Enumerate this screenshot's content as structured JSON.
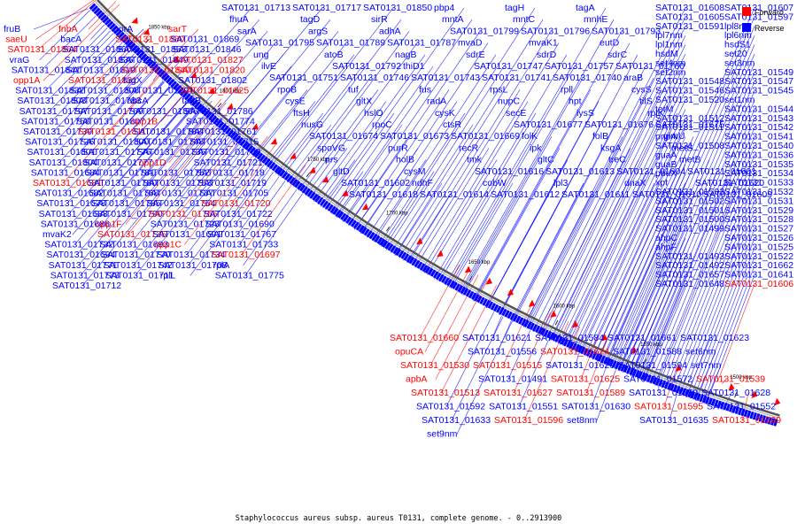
{
  "caption": "Staphylococcus aureus subsp. aureus T0131, complete genome. - 0..2913900",
  "legend": [
    {
      "label": "Forward",
      "color": "#ff0000"
    },
    {
      "label": "Reverse",
      "color": "#0000ff"
    }
  ],
  "colors": {
    "forward": "#ff0000",
    "reverse": "#0000ff",
    "backbone": "#808080"
  },
  "kbp_ticks": [
    "1850 kbp",
    "1800 kbp",
    "1750 kbp",
    "1700 kbp",
    "1650 kbp",
    "1600 kbp",
    "1550 kbp",
    "1500 kbp"
  ],
  "labels": [
    {
      "t": "fruB",
      "s": "r"
    },
    {
      "t": "fnbA",
      "s": "f"
    },
    {
      "t": "norA",
      "s": "r"
    },
    {
      "t": "sarT",
      "s": "f"
    },
    {
      "t": "saeU",
      "s": "f"
    },
    {
      "t": "bacA",
      "s": "r"
    },
    {
      "t": "SAT0131_01880",
      "s": "f"
    },
    {
      "t": "SAT0131_01869",
      "s": "r"
    },
    {
      "t": "SAT0131_01864",
      "s": "f"
    },
    {
      "t": "SAT0131_01860",
      "s": "r"
    },
    {
      "t": "SAT0131_01853",
      "s": "r"
    },
    {
      "t": "SAT0131_01846",
      "s": "r"
    },
    {
      "t": "vraG",
      "s": "r"
    },
    {
      "t": "SAT0131_01835",
      "s": "r"
    },
    {
      "t": "SAT0131_01849",
      "s": "r"
    },
    {
      "t": "SAT0131_01827",
      "s": "f"
    },
    {
      "t": "SAT0131_01841",
      "s": "r"
    },
    {
      "t": "SAT0131_01819",
      "s": "r"
    },
    {
      "t": "SAT0131_01840",
      "s": "f"
    },
    {
      "t": "SAT0131_01820",
      "s": "f"
    },
    {
      "t": "opp1A",
      "s": "f"
    },
    {
      "t": "SAT0131_01831",
      "s": "f"
    },
    {
      "t": "tagX",
      "s": "r"
    },
    {
      "t": "SAT0131_01802",
      "s": "r"
    },
    {
      "t": "SAT0131_01832",
      "s": "r"
    },
    {
      "t": "SAT0131_01808",
      "s": "r"
    },
    {
      "t": "SAT0131_01791",
      "s": "r"
    },
    {
      "t": "SAT0131_01825",
      "s": "f"
    },
    {
      "t": "SAT0131_01803",
      "s": "r"
    },
    {
      "t": "SAT0131_01783",
      "s": "r"
    },
    {
      "t": "abcA",
      "s": "r"
    },
    {
      "t": "tagB",
      "s": "r"
    },
    {
      "t": "SAT0131_01797",
      "s": "r"
    },
    {
      "t": "SAT0131_01769",
      "s": "r"
    },
    {
      "t": "SAT0131_01806",
      "s": "r"
    },
    {
      "t": "SAT0131_01786",
      "s": "r"
    },
    {
      "t": "SAT0131_01758",
      "s": "r"
    },
    {
      "t": "SAT0131_01807",
      "s": "r"
    },
    {
      "t": "opp1B",
      "s": "f"
    },
    {
      "t": "SAT0131_01774",
      "s": "r"
    },
    {
      "t": "SAT0131_01739",
      "s": "r"
    },
    {
      "t": "SAT0131_01811",
      "s": "f"
    },
    {
      "t": "SAT0131_01788",
      "s": "r"
    },
    {
      "t": "SAT0131_01761",
      "s": "r"
    },
    {
      "t": "SAT0131_01726",
      "s": "r"
    },
    {
      "t": "SAT0131_01800",
      "s": "r"
    },
    {
      "t": "SAT0131_01748",
      "s": "r"
    },
    {
      "t": "SAT0131_01715",
      "s": "r"
    },
    {
      "t": "SAT0131_01801",
      "s": "r"
    },
    {
      "t": "SAT0131_01776",
      "s": "r"
    },
    {
      "t": "SAT0131_01735",
      "s": "r"
    },
    {
      "t": "SAT0131_01702",
      "s": "r"
    },
    {
      "t": "SAT0131_01804",
      "s": "r"
    },
    {
      "t": "SAT0131_01777",
      "s": "r"
    },
    {
      "t": "opp1D",
      "s": "f"
    },
    {
      "t": "SAT0131_01721",
      "s": "r"
    },
    {
      "t": "SAT0131_01684",
      "s": "r"
    },
    {
      "t": "SAT0131_01781",
      "s": "r"
    },
    {
      "t": "SAT0131_01752",
      "s": "r"
    },
    {
      "t": "SAT0131_01718",
      "s": "r"
    },
    {
      "t": "SAT0131_01681",
      "s": "f"
    },
    {
      "t": "SAT0131_01780",
      "s": "r"
    },
    {
      "t": "SAT0131_01753",
      "s": "r"
    },
    {
      "t": "SAT0131_01719",
      "s": "r"
    },
    {
      "t": "SAT0131_01682",
      "s": "r"
    },
    {
      "t": "SAT0131_01768",
      "s": "r"
    },
    {
      "t": "SAT0131_01737",
      "s": "r"
    },
    {
      "t": "SAT0131_01705",
      "s": "r"
    },
    {
      "t": "SAT0131_01678",
      "s": "r"
    },
    {
      "t": "SAT0131_01785",
      "s": "r"
    },
    {
      "t": "SAT0131_01754",
      "s": "r"
    },
    {
      "t": "SAT0131_01720",
      "s": "f"
    },
    {
      "t": "SAT0131_01683",
      "s": "r"
    },
    {
      "t": "SAT0131_01790",
      "s": "r"
    },
    {
      "t": "SAT0131_01755",
      "s": "f"
    },
    {
      "t": "SAT0131_01722",
      "s": "r"
    },
    {
      "t": "SAT0131_01686",
      "s": "r"
    },
    {
      "t": "opp1F",
      "s": "f"
    },
    {
      "t": "SAT0131_01723",
      "s": "r"
    },
    {
      "t": "SAT0131_01690",
      "s": "r"
    },
    {
      "t": "mvaK2",
      "s": "r"
    },
    {
      "t": "SAT0131_01725",
      "s": "f"
    },
    {
      "t": "SAT0131_01691",
      "s": "r"
    },
    {
      "t": "SAT0131_01767",
      "s": "r"
    },
    {
      "t": "SAT0131_01732",
      "s": "r"
    },
    {
      "t": "SAT0131_01693",
      "s": "r"
    },
    {
      "t": "opp1C",
      "s": "f"
    },
    {
      "t": "SAT0131_01733",
      "s": "r"
    },
    {
      "t": "SAT0131_01694",
      "s": "r"
    },
    {
      "t": "SAT0131_01770",
      "s": "r"
    },
    {
      "t": "SAT0131_01734",
      "s": "r"
    },
    {
      "t": "SAT0131_01697",
      "s": "f"
    },
    {
      "t": "SAT0131_01771",
      "s": "r"
    },
    {
      "t": "SAT0131_01742",
      "s": "r"
    },
    {
      "t": "SAT0131_01708",
      "s": "r"
    },
    {
      "t": "rplA",
      "s": "r"
    },
    {
      "t": "SAT0131_01773",
      "s": "r"
    },
    {
      "t": "SAT0131_01711",
      "s": "r"
    },
    {
      "t": "rplL",
      "s": "r"
    },
    {
      "t": "SAT0131_01775",
      "s": "r"
    },
    {
      "t": "SAT0131_01712",
      "s": "r"
    },
    {
      "t": "SAT0131_01713",
      "s": "r"
    },
    {
      "t": "SAT0131_01717",
      "s": "r"
    },
    {
      "t": "SAT0131_01850",
      "s": "r"
    },
    {
      "t": "pbp4",
      "s": "r"
    },
    {
      "t": "tagH",
      "s": "r"
    },
    {
      "t": "tagA",
      "s": "r"
    },
    {
      "t": "fhuA",
      "s": "r"
    },
    {
      "t": "tagD",
      "s": "r"
    },
    {
      "t": "sirR",
      "s": "r"
    },
    {
      "t": "mntA",
      "s": "r"
    },
    {
      "t": "mntC",
      "s": "r"
    },
    {
      "t": "mnhE",
      "s": "r"
    },
    {
      "t": "sarA",
      "s": "r"
    },
    {
      "t": "argS",
      "s": "r"
    },
    {
      "t": "adhA",
      "s": "r"
    },
    {
      "t": "SAT0131_01799",
      "s": "r"
    },
    {
      "t": "SAT0131_01796",
      "s": "r"
    },
    {
      "t": "SAT0131_01793",
      "s": "r"
    },
    {
      "t": "SAT0131_01795",
      "s": "r"
    },
    {
      "t": "SAT0131_01789",
      "s": "r"
    },
    {
      "t": "SAT0131_01787",
      "s": "r"
    },
    {
      "t": "mvaD",
      "s": "r"
    },
    {
      "t": "mvaK1",
      "s": "r"
    },
    {
      "t": "eutD",
      "s": "r"
    },
    {
      "t": "ung",
      "s": "r"
    },
    {
      "t": "atoB",
      "s": "r"
    },
    {
      "t": "nagB",
      "s": "r"
    },
    {
      "t": "sdrE",
      "s": "r"
    },
    {
      "t": "sdrD",
      "s": "r"
    },
    {
      "t": "sdrC",
      "s": "r"
    },
    {
      "t": "ilvE",
      "s": "r"
    },
    {
      "t": "SAT0131_01792",
      "s": "r"
    },
    {
      "t": "thiD1",
      "s": "r"
    },
    {
      "t": "SAT0131_01747",
      "s": "r"
    },
    {
      "t": "SAT0131_01757",
      "s": "r"
    },
    {
      "t": "SAT0131_01760",
      "s": "r"
    },
    {
      "t": "SAT0131_01751",
      "s": "r"
    },
    {
      "t": "SAT0131_01746",
      "s": "r"
    },
    {
      "t": "SAT0131_01743",
      "s": "r"
    },
    {
      "t": "SAT0131_01741",
      "s": "r"
    },
    {
      "t": "SAT0131_01740",
      "s": "r"
    },
    {
      "t": "araB",
      "s": "r"
    },
    {
      "t": "rpoB",
      "s": "r"
    },
    {
      "t": "tuf",
      "s": "r"
    },
    {
      "t": "fus",
      "s": "r"
    },
    {
      "t": "rpsL",
      "s": "r"
    },
    {
      "t": "rpll",
      "s": "r"
    },
    {
      "t": "cysS",
      "s": "r"
    },
    {
      "t": "cysE",
      "s": "r"
    },
    {
      "t": "gltX",
      "s": "r"
    },
    {
      "t": "radA",
      "s": "r"
    },
    {
      "t": "nupC",
      "s": "r"
    },
    {
      "t": "hpt",
      "s": "r"
    },
    {
      "t": "tilS",
      "s": "r"
    },
    {
      "t": "ftsH",
      "s": "r"
    },
    {
      "t": "hslO",
      "s": "r"
    },
    {
      "t": "cysK",
      "s": "r"
    },
    {
      "t": "secE",
      "s": "r"
    },
    {
      "t": "lysS",
      "s": "r"
    },
    {
      "t": "rplK",
      "s": "r"
    },
    {
      "t": "nusG",
      "s": "r"
    },
    {
      "t": "rpoC",
      "s": "r"
    },
    {
      "t": "ctsR",
      "s": "r"
    },
    {
      "t": "SAT0131_01677",
      "s": "r"
    },
    {
      "t": "SAT0131_01676",
      "s": "r"
    },
    {
      "t": "SAT0131_01675",
      "s": "r"
    },
    {
      "t": "SAT0131_01674",
      "s": "r"
    },
    {
      "t": "SAT0131_01673",
      "s": "r"
    },
    {
      "t": "SAT0131_01669",
      "s": "r"
    },
    {
      "t": "folK",
      "s": "r"
    },
    {
      "t": "folB",
      "s": "r"
    },
    {
      "t": "glmU",
      "s": "r"
    },
    {
      "t": "spoVG",
      "s": "r"
    },
    {
      "t": "purR",
      "s": "r"
    },
    {
      "t": "recR",
      "s": "r"
    },
    {
      "t": "ipk",
      "s": "r"
    },
    {
      "t": "ksgA",
      "s": "r"
    },
    {
      "t": "metS",
      "s": "r"
    },
    {
      "t": "prs",
      "s": "r"
    },
    {
      "t": "holB",
      "s": "r"
    },
    {
      "t": "tmk",
      "s": "r"
    },
    {
      "t": "gltC",
      "s": "r"
    },
    {
      "t": "treC",
      "s": "r"
    },
    {
      "t": "metB",
      "s": "r"
    },
    {
      "t": "gltD",
      "s": "r"
    },
    {
      "t": "cysM",
      "s": "r"
    },
    {
      "t": "SAT0131_01616",
      "s": "r"
    },
    {
      "t": "SAT0131_01613",
      "s": "r"
    },
    {
      "t": "SAT0131_01604",
      "s": "r"
    },
    {
      "t": "SAT0131_01601",
      "s": "r"
    },
    {
      "t": "SAT0131_01602",
      "s": "r"
    },
    {
      "t": "ndhF",
      "s": "r"
    },
    {
      "t": "cobW",
      "s": "r"
    },
    {
      "t": "lpl3",
      "s": "r"
    },
    {
      "t": "dnaX",
      "s": "r"
    },
    {
      "t": "SAT0131_01620",
      "s": "r"
    },
    {
      "t": "SAT0131_01618",
      "s": "r"
    },
    {
      "t": "SAT0131_01614",
      "s": "r"
    },
    {
      "t": "SAT0131_01612",
      "s": "r"
    },
    {
      "t": "SAT0131_01611",
      "s": "r"
    },
    {
      "t": "SAT0131_01610",
      "s": "r"
    },
    {
      "t": "SAT0131_01609",
      "s": "r"
    },
    {
      "t": "SAT0131_01608",
      "s": "r"
    },
    {
      "t": "SAT0131_01607",
      "s": "r"
    },
    {
      "t": "SAT0131_01605",
      "s": "r"
    },
    {
      "t": "SAT0131_01597",
      "s": "r"
    },
    {
      "t": "SAT0131_01591",
      "s": "r"
    },
    {
      "t": "lpl8nm",
      "s": "r"
    },
    {
      "t": "lpl7nm",
      "s": "r"
    },
    {
      "t": "lpl6nm",
      "s": "r"
    },
    {
      "t": "lpl1nm",
      "s": "r"
    },
    {
      "t": "hsdS1",
      "s": "r"
    },
    {
      "t": "hsdM",
      "s": "r"
    },
    {
      "t": "set20",
      "s": "r"
    },
    {
      "t": "set4nm",
      "s": "r"
    },
    {
      "t": "set3nm",
      "s": "r"
    },
    {
      "t": "set2nm",
      "s": "r"
    },
    {
      "t": "SAT0131_01549",
      "s": "r"
    },
    {
      "t": "SAT0131_01548",
      "s": "r"
    },
    {
      "t": "SAT0131_01547",
      "s": "r"
    },
    {
      "t": "SAT0131_01546",
      "s": "r"
    },
    {
      "t": "SAT0131_01545",
      "s": "r"
    },
    {
      "t": "SAT0131_01520",
      "s": "r"
    },
    {
      "t": "set1nm",
      "s": "r"
    },
    {
      "t": "tetM",
      "s": "r"
    },
    {
      "t": "SAT0131_01544",
      "s": "r"
    },
    {
      "t": "SAT0131_01512",
      "s": "r"
    },
    {
      "t": "SAT0131_01543",
      "s": "r"
    },
    {
      "t": "SAT0131_01511",
      "s": "r"
    },
    {
      "t": "SAT0131_01542",
      "s": "r"
    },
    {
      "t": "pnpA",
      "s": "r"
    },
    {
      "t": "SAT0131_01541",
      "s": "r"
    },
    {
      "t": "SAT0131_01508",
      "s": "r"
    },
    {
      "t": "SAT0131_01540",
      "s": "r"
    },
    {
      "t": "guaA",
      "s": "r"
    },
    {
      "t": "SAT0131_01536",
      "s": "r"
    },
    {
      "t": "guaB",
      "s": "r"
    },
    {
      "t": "SAT0131_01535",
      "s": "r"
    },
    {
      "t": "pbuX",
      "s": "r"
    },
    {
      "t": "SAT0131_01534",
      "s": "r"
    },
    {
      "t": "xpt",
      "s": "r"
    },
    {
      "t": "SAT0131_01533",
      "s": "r"
    },
    {
      "t": "SAT0131_01503",
      "s": "r"
    },
    {
      "t": "SAT0131_01532",
      "s": "r"
    },
    {
      "t": "SAT0131_01502",
      "s": "r"
    },
    {
      "t": "SAT0131_01531",
      "s": "r"
    },
    {
      "t": "SAT0131_01501",
      "s": "r"
    },
    {
      "t": "SAT0131_01529",
      "s": "r"
    },
    {
      "t": "SAT0131_01500",
      "s": "r"
    },
    {
      "t": "SAT0131_01528",
      "s": "r"
    },
    {
      "t": "SAT0131_01499",
      "s": "r"
    },
    {
      "t": "SAT0131_01527",
      "s": "r"
    },
    {
      "t": "ahpC",
      "s": "r"
    },
    {
      "t": "SAT0131_01526",
      "s": "r"
    },
    {
      "t": "ahpF",
      "s": "r"
    },
    {
      "t": "SAT0131_01525",
      "s": "r"
    },
    {
      "t": "SAT0131_01493",
      "s": "r"
    },
    {
      "t": "SAT0131_01522",
      "s": "r"
    },
    {
      "t": "SAT0131_01492",
      "s": "r"
    },
    {
      "t": "SAT0131_01662",
      "s": "r"
    },
    {
      "t": "SAT0131_01657",
      "s": "r"
    },
    {
      "t": "SAT0131_01641",
      "s": "r"
    },
    {
      "t": "SAT0131_01648",
      "s": "r"
    },
    {
      "t": "SAT0131_01606",
      "s": "f"
    },
    {
      "t": "SAT0131_01660",
      "s": "f"
    },
    {
      "t": "SAT0131_01621",
      "s": "r"
    },
    {
      "t": "SAT0131_01584",
      "s": "r"
    },
    {
      "t": "SAT0131_01661",
      "s": "r"
    },
    {
      "t": "SAT0131_01623",
      "s": "r"
    },
    {
      "t": "opuCA",
      "s": "f"
    },
    {
      "t": "SAT0131_01556",
      "s": "r"
    },
    {
      "t": "SAT0131_01624",
      "s": "f"
    },
    {
      "t": "SAT0131_01588",
      "s": "r"
    },
    {
      "t": "set6nm",
      "s": "r"
    },
    {
      "t": "SAT0131_01530",
      "s": "f"
    },
    {
      "t": "SAT0131_01515",
      "s": "f"
    },
    {
      "t": "SAT0131_01629",
      "s": "r"
    },
    {
      "t": "SAT0131_01594",
      "s": "r"
    },
    {
      "t": "set7nm",
      "s": "r"
    },
    {
      "t": "apbA",
      "s": "f"
    },
    {
      "t": "SAT0131_01491",
      "s": "r"
    },
    {
      "t": "SAT0131_01625",
      "s": "f"
    },
    {
      "t": "SAT0131_01572",
      "s": "r"
    },
    {
      "t": "SAT0131_01539",
      "s": "f"
    },
    {
      "t": "SAT0131_01513",
      "s": "f"
    },
    {
      "t": "SAT0131_01627",
      "s": "f"
    },
    {
      "t": "SAT0131_01589",
      "s": "f"
    },
    {
      "t": "SAT0131_01550",
      "s": "r"
    },
    {
      "t": "SAT0131_01628",
      "s": "r"
    },
    {
      "t": "SAT0131_01592",
      "s": "r"
    },
    {
      "t": "SAT0131_01551",
      "s": "r"
    },
    {
      "t": "SAT0131_01630",
      "s": "r"
    },
    {
      "t": "SAT0131_01595",
      "s": "f"
    },
    {
      "t": "SAT0131_01552",
      "s": "r"
    },
    {
      "t": "SAT0131_01633",
      "s": "r"
    },
    {
      "t": "SAT0131_01596",
      "s": "f"
    },
    {
      "t": "set8nm",
      "s": "r"
    },
    {
      "t": "SAT0131_01635",
      "s": "r"
    },
    {
      "t": "SAT0131_01599",
      "s": "f"
    },
    {
      "t": "set9nm",
      "s": "r"
    }
  ]
}
